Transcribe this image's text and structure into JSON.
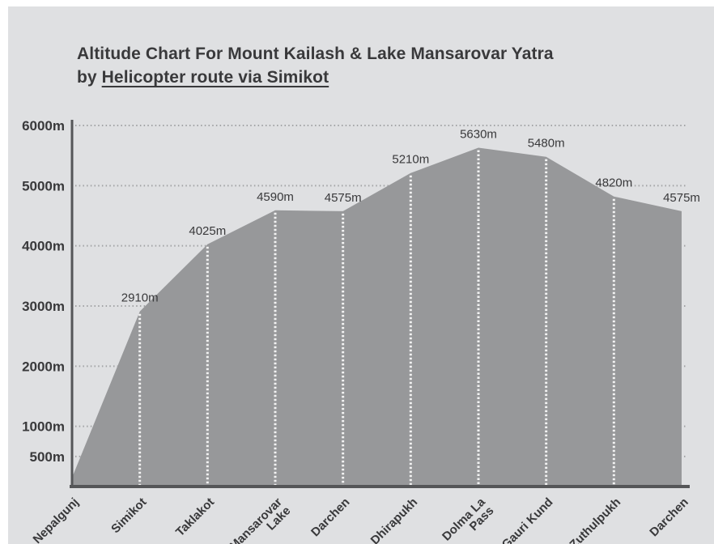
{
  "title": {
    "line1": "Altitude Chart For Mount Kailash & Lake Mansarovar Yatra",
    "line2_prefix": "by ",
    "line2_underline": "Helicopter route via Simikot"
  },
  "colors": {
    "page_bg": "#ffffff",
    "panel_bg": "#dfe0e2",
    "area_fill": "#97989a",
    "axis": "#555658",
    "gridline": "#a2a3a5",
    "marker_line": "#f2f2f2",
    "text": "#39393b"
  },
  "chart_data": {
    "type": "area",
    "title": "Altitude Chart For Mount Kailash & Lake Mansarovar Yatra by Helicopter route via Simikot",
    "xlabel": "",
    "ylabel": "",
    "unit": "m",
    "ylim": [
      0,
      6000
    ],
    "grid": true,
    "legend": false,
    "categories": [
      "Nepalgunj",
      "Simikot",
      "Taklakot",
      "Mansarovar\nLake",
      "Darchen",
      "Dhirapukh",
      "Dolma La\nPass",
      "Gauri Kund",
      "Zuthulpukh",
      "Darchen"
    ],
    "values": [
      150,
      2910,
      4025,
      4590,
      4575,
      5210,
      5630,
      5480,
      4820,
      4575
    ],
    "point_labels": [
      "",
      "2910m",
      "4025m",
      "4590m",
      "4575m",
      "5210m",
      "5630m",
      "5480m",
      "4820m",
      "4575m"
    ],
    "y_ticks": [
      {
        "label": "500m",
        "value": 500
      },
      {
        "label": "1000m",
        "value": 1000
      },
      {
        "label": "2000m",
        "value": 2000
      },
      {
        "label": "3000m",
        "value": 3000
      },
      {
        "label": "4000m",
        "value": 4000
      },
      {
        "label": "5000m",
        "value": 5000
      },
      {
        "label": "6000m",
        "value": 6000
      }
    ]
  }
}
